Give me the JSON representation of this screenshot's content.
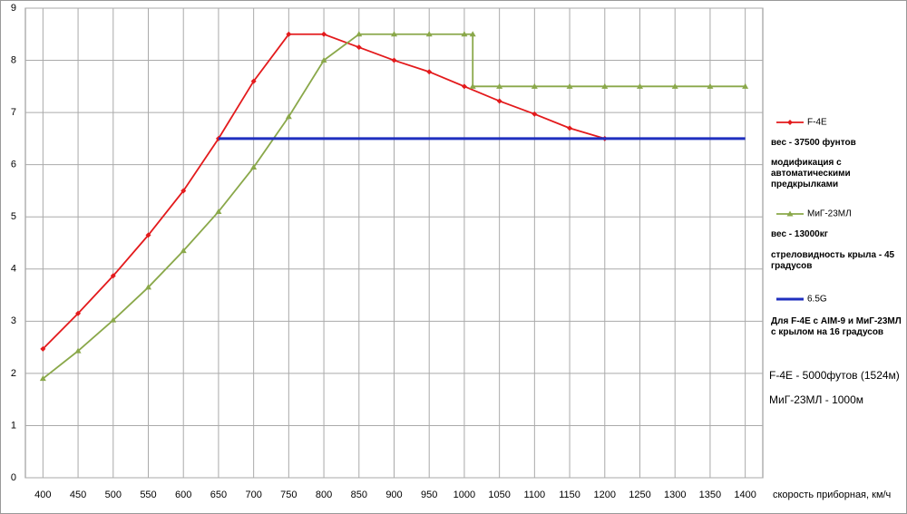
{
  "chart_data": {
    "type": "line",
    "x_label": "скорость приборная, км/ч",
    "xlim": [
      375,
      1425
    ],
    "xticks": [
      400,
      450,
      500,
      550,
      600,
      650,
      700,
      750,
      800,
      850,
      900,
      950,
      1000,
      1050,
      1100,
      1150,
      1200,
      1250,
      1300,
      1350,
      1400
    ],
    "ylim": [
      0,
      9
    ],
    "yticks": [
      0,
      1,
      2,
      3,
      4,
      5,
      6,
      7,
      8,
      9
    ],
    "grid": true,
    "series": [
      {
        "name": "F-4E",
        "color": "#e31a1c",
        "marker": "diamond",
        "x": [
          400,
          450,
          500,
          550,
          600,
          650,
          700,
          750,
          800,
          850,
          900,
          950,
          1000,
          1050,
          1100,
          1150,
          1200
        ],
        "values": [
          2.47,
          3.15,
          3.87,
          4.65,
          5.5,
          6.5,
          7.6,
          8.5,
          8.5,
          8.25,
          8.0,
          7.78,
          7.5,
          7.22,
          6.97,
          6.7,
          6.5
        ]
      },
      {
        "name": "МиГ-23МЛ",
        "color": "#8aa84a",
        "marker": "triangle",
        "x": [
          400,
          450,
          500,
          550,
          600,
          650,
          700,
          750,
          800,
          850,
          900,
          950,
          1000,
          1012,
          1012,
          1050,
          1100,
          1150,
          1200,
          1250,
          1300,
          1350,
          1400
        ],
        "values": [
          1.9,
          2.43,
          3.02,
          3.65,
          4.35,
          5.1,
          5.95,
          6.92,
          8.0,
          8.5,
          8.5,
          8.5,
          8.5,
          8.5,
          7.5,
          7.5,
          7.5,
          7.5,
          7.5,
          7.5,
          7.5,
          7.5,
          7.5
        ]
      },
      {
        "name": "6.5G",
        "color": "#1f2fbf",
        "marker": "none",
        "x": [
          650,
          700,
          750,
          800,
          850,
          900,
          950,
          1000,
          1050,
          1100,
          1150,
          1200,
          1250,
          1300,
          1350,
          1400
        ],
        "values": [
          6.5,
          6.5,
          6.5,
          6.5,
          6.5,
          6.5,
          6.5,
          6.5,
          6.5,
          6.5,
          6.5,
          6.5,
          6.5,
          6.5,
          6.5,
          6.5
        ]
      }
    ],
    "legend_notes": [
      [
        "вес - 37500 фунтов",
        "модификация с автоматическими предкрылками"
      ],
      [
        "вес - 13000кг",
        "стреловидность крыла - 45 градусов"
      ],
      [
        "Для F-4E с AIM-9 и МиГ-23МЛ с крылом на 16 градусов"
      ]
    ],
    "annotations": [
      "F-4E - 5000футов (1524м)",
      "МиГ-23МЛ - 1000м"
    ]
  }
}
